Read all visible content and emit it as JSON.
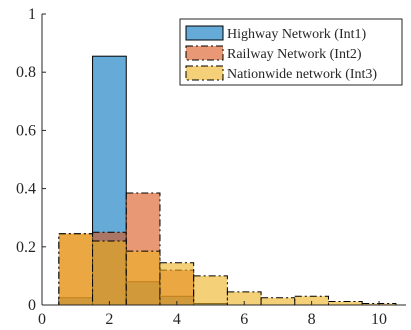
{
  "chart_data": {
    "type": "bar",
    "subtype": "overlaid-histogram",
    "title": "",
    "xlabel": "",
    "ylabel": "",
    "xlim": [
      0,
      10.8
    ],
    "ylim": [
      0,
      1
    ],
    "xticks": [
      0,
      2,
      4,
      6,
      8,
      10
    ],
    "yticks": [
      0,
      0.2,
      0.4,
      0.6,
      0.8,
      1
    ],
    "xtick_labels": [
      "0",
      "2",
      "4",
      "6",
      "8",
      "10"
    ],
    "ytick_labels": [
      "0",
      "0.2",
      "0.4",
      "0.6",
      "0.8",
      "1"
    ],
    "bin_edges": [
      0.5,
      1.5,
      2.5,
      3.5,
      4.5,
      5.5,
      6.5,
      7.5,
      8.5,
      9.5,
      10.5
    ],
    "grid": false,
    "legend_position": "top-right",
    "series": [
      {
        "name": "Highway Network (Int1)",
        "color": "#0072BD",
        "values": [
          0.025,
          0.855,
          0.08,
          0.03,
          0.005,
          0,
          0,
          0,
          0,
          0
        ],
        "edge_style": "solid"
      },
      {
        "name": "Railway Network (Int2)",
        "color": "#D95319",
        "values": [
          0.245,
          0.25,
          0.385,
          0.12,
          0,
          0,
          0,
          0,
          0,
          0
        ],
        "edge_style": "dash-dot"
      },
      {
        "name": "Nationwide network (Int3)",
        "color": "#EDB120",
        "values": [
          0.245,
          0.22,
          0.185,
          0.145,
          0.1,
          0.045,
          0.025,
          0.03,
          0.012,
          0.005
        ],
        "edge_style": "dash-dot"
      }
    ]
  }
}
